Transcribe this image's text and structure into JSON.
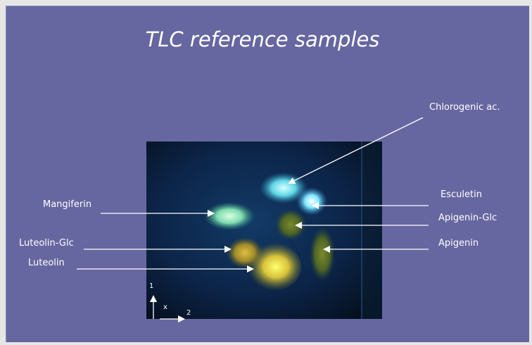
{
  "title": "TLC reference samples",
  "labels": {
    "chlorogenic": "Chlorogenic ac.",
    "esculetin": "Esculetin",
    "apigenin_glc": "Apigenin-Glc",
    "apigenin": "Apigenin",
    "mangiferin": "Mangiferin",
    "luteolin_glc": "Luteolin-Glc",
    "luteolin": "Luteolin"
  },
  "axes": {
    "dim1": "1",
    "dim2": "2",
    "origin": "x"
  },
  "colors": {
    "background": "#6667a0",
    "plate": "#0a1a3a",
    "text": "#ffffff"
  }
}
